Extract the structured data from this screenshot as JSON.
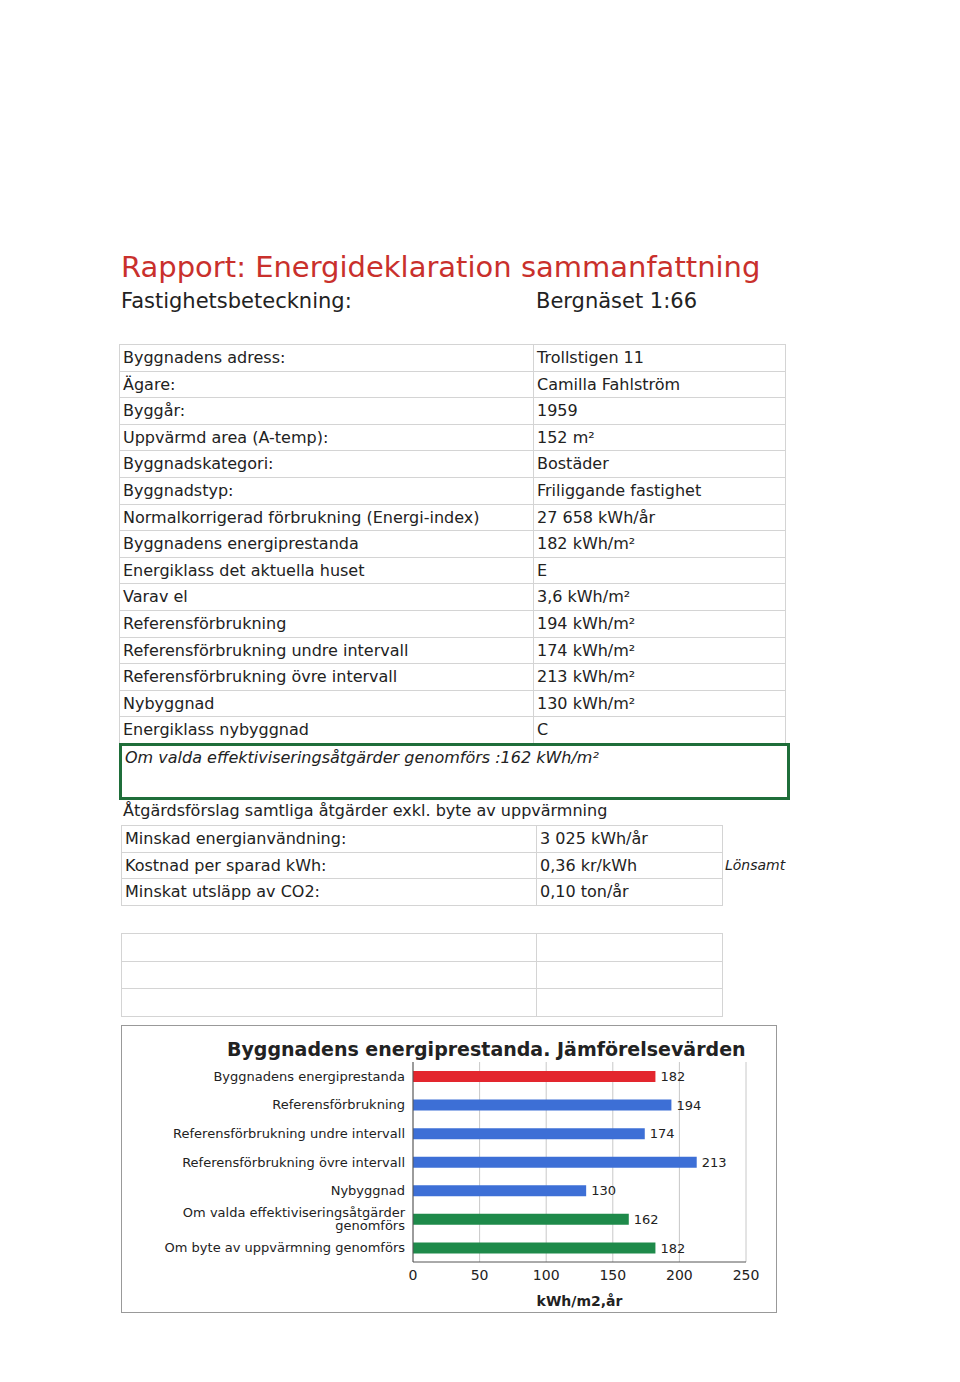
{
  "header": {
    "title": "Rapport: Energideklaration sammanfattning",
    "property_label": "Fastighetsbeteckning:",
    "property_value": "Bergnäset 1:66"
  },
  "table": {
    "rows": [
      [
        "Byggnadens adress:",
        "Trollstigen 11"
      ],
      [
        "Ägare:",
        "Camilla Fahlström"
      ],
      [
        "Byggår:",
        "1959"
      ],
      [
        "Uppvärmd area (A-temp):",
        "152 m²"
      ],
      [
        "Byggnadskategori:",
        "Bostäder"
      ],
      [
        "Byggnadstyp:",
        "Friliggande fastighet"
      ],
      [
        "Normalkorrigerad förbrukning (Energi-index)",
        "27 658 kWh/år"
      ],
      [
        "Byggnadens energiprestanda",
        "182 kWh/m²"
      ],
      [
        "Energiklass det aktuella huset",
        "E"
      ],
      [
        "Varav el",
        "3,6 kWh/m²"
      ],
      [
        "Referensförbrukning",
        "194 kWh/m²"
      ],
      [
        "Referensförbrukning undre intervall",
        "174 kWh/m²"
      ],
      [
        "Referensförbrukning övre intervall",
        "213 kWh/m²"
      ],
      [
        "Nybyggnad",
        "130 kWh/m²"
      ],
      [
        "Energiklass nybyggnad",
        "C"
      ]
    ]
  },
  "highlight": "Om valda effektiviseringsåtgärder genomförs :162 kWh/m²",
  "measures": {
    "title": "Åtgärdsförslag samtliga åtgärder exkl. byte av uppvärmning",
    "rows": [
      [
        "Minskad energianvändning:",
        "3 025 kWh/år"
      ],
      [
        "Kostnad per sparad kWh:",
        "0,36 kr/kWh"
      ],
      [
        "Minskat utsläpp av CO2:",
        "0,10 ton/år"
      ]
    ],
    "note": "Lönsamt"
  },
  "chart_data": {
    "type": "bar",
    "orientation": "horizontal",
    "title": "Byggnadens energiprestanda. Jämförelsevärden",
    "categories": [
      "Byggnadens energiprestanda",
      "Referensförbrukning",
      "Referensförbrukning undre intervall",
      "Referensförbrukning övre intervall",
      "Nybyggnad",
      "Om valda effektiviseringsåtgärder genomförs",
      "Om byte av uppvärmning genomförs"
    ],
    "values": [
      182,
      194,
      174,
      213,
      130,
      162,
      182
    ],
    "colors": [
      "#e3262e",
      "#3d6fd6",
      "#3d6fd6",
      "#3d6fd6",
      "#3d6fd6",
      "#1e8a4a",
      "#1e8a4a"
    ],
    "x_label": "kWh/m2,år",
    "xlim": [
      0,
      250
    ],
    "xticks": [
      0,
      50,
      100,
      150,
      200,
      250
    ],
    "grid": true,
    "data_labels": true
  }
}
